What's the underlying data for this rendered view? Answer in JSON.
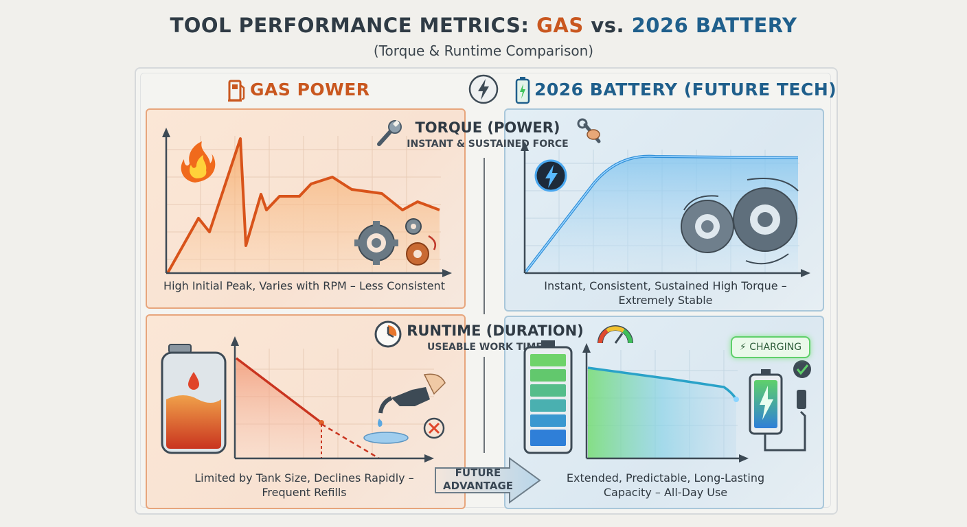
{
  "title": {
    "prefix": "TOOL PERFORMANCE METRICS: ",
    "gas_word": "GAS",
    "vs": " vs. ",
    "battery_word": "2026 BATTERY"
  },
  "subtitle": "(Torque & Runtime Comparison)",
  "columns": {
    "gas": "GAS POWER",
    "battery": "2026 BATTERY (FUTURE TECH)"
  },
  "torque": {
    "title": "TORQUE (POWER)",
    "subtitle": "INSTANT & SUSTAINED FORCE",
    "gas_caption": "High Initial Peak, Varies with RPM – Less Consistent",
    "battery_caption_line1": "Instant, Consistent, Sustained High Torque –",
    "battery_caption_line2": "Extremely Stable"
  },
  "runtime": {
    "title": "RUNTIME (DURATION)",
    "subtitle": "USEABLE WORK TIME",
    "gas_caption_line1": "Limited by Tank Size, Declines Rapidly –",
    "gas_caption_line2": "Frequent Refills",
    "battery_caption_line1": "Extended, Predictable, Long-Lasting",
    "battery_caption_line2": "Capacity – All-Day Use",
    "charging_badge": "CHARGING"
  },
  "arrow": {
    "line1": "FUTURE",
    "line2": "ADVANTAGE"
  },
  "colors": {
    "gas_accent": "#c9571f",
    "battery_accent": "#1f5f8c",
    "gas_line": "#e06a1f",
    "battery_line": "#3a9be0",
    "charging_green": "#5fd06a"
  },
  "icons": {
    "gas": "fuel-pump-icon",
    "battery": "battery-icon",
    "center": "lightning-icon",
    "torque": "wrench-icon",
    "runtime": "clock-icon"
  }
}
